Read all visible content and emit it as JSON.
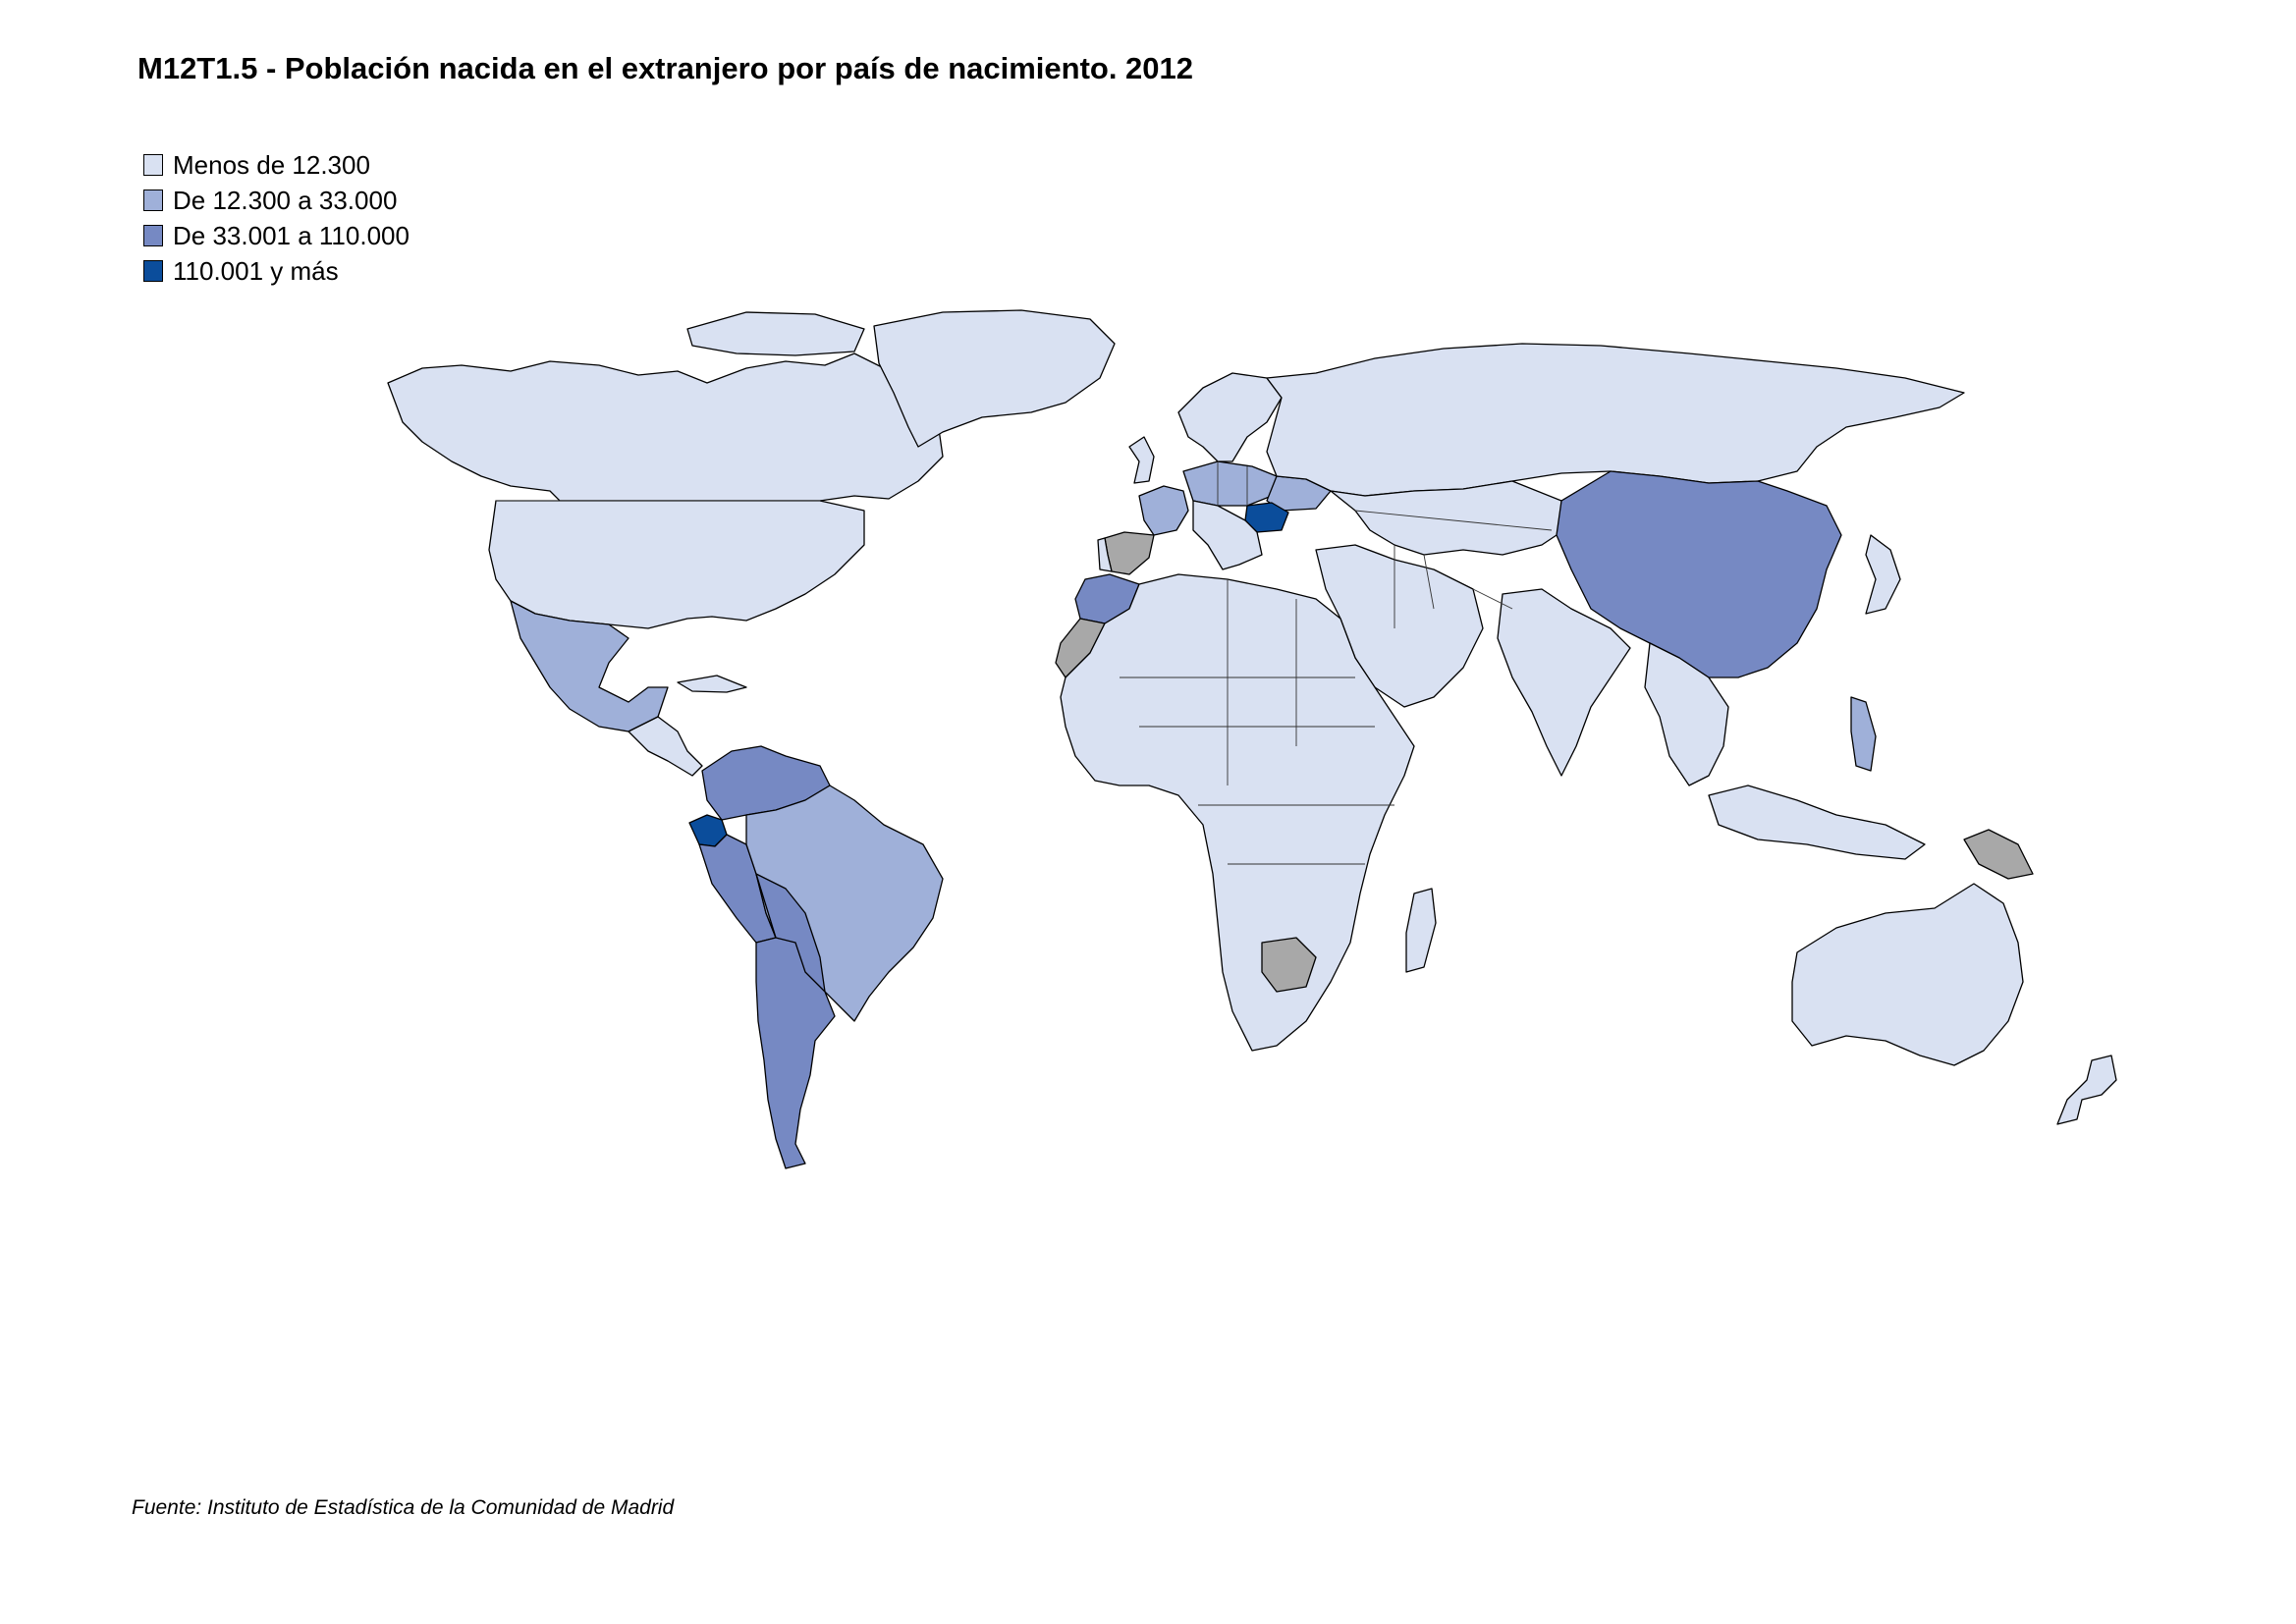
{
  "title": "M12T1.5 - Población nacida en el extranjero por país de nacimiento. 2012",
  "legend": [
    {
      "label": "Menos de 12.300",
      "color": "#d9e1f2"
    },
    {
      "label": "De 12.300 a 33.000",
      "color": "#9fb0d9"
    },
    {
      "label": "De 33.001 a 110.000",
      "color": "#7689c3"
    },
    {
      "label": "110.001 y más",
      "color": "#0b4d9b"
    }
  ],
  "no_data_color": "#a8a8a8",
  "source": "Fuente: Instituto de Estadística de la Comunidad de Madrid"
}
